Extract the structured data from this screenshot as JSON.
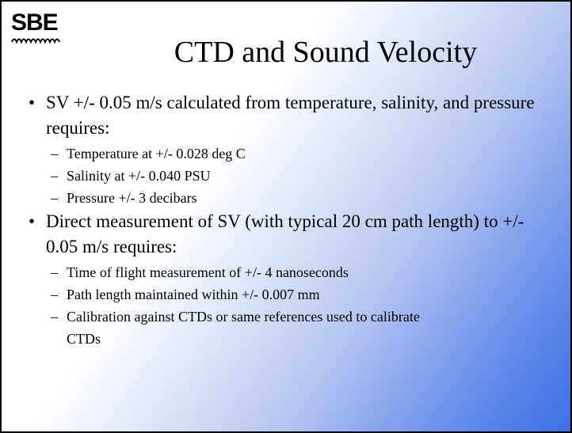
{
  "logo": {
    "text": "SBE"
  },
  "title": "CTD and Sound Velocity",
  "bullets": [
    {
      "text": "SV +/- 0.05 m/s calculated from temperature, salinity, and pressure requires:",
      "subs": [
        "Temperature at +/- 0.028 deg C",
        "Salinity at +/- 0.040 PSU",
        "Pressure +/- 3 decibars"
      ]
    },
    {
      "text": "Direct measurement of SV (with typical 20 cm path length) to +/- 0.05 m/s requires:",
      "subs": [
        "Time of flight measurement of +/- 4 nanoseconds",
        "Path length maintained within +/- 0.007 mm",
        "Calibration against CTDs or same references used to calibrate CTDs"
      ]
    }
  ]
}
